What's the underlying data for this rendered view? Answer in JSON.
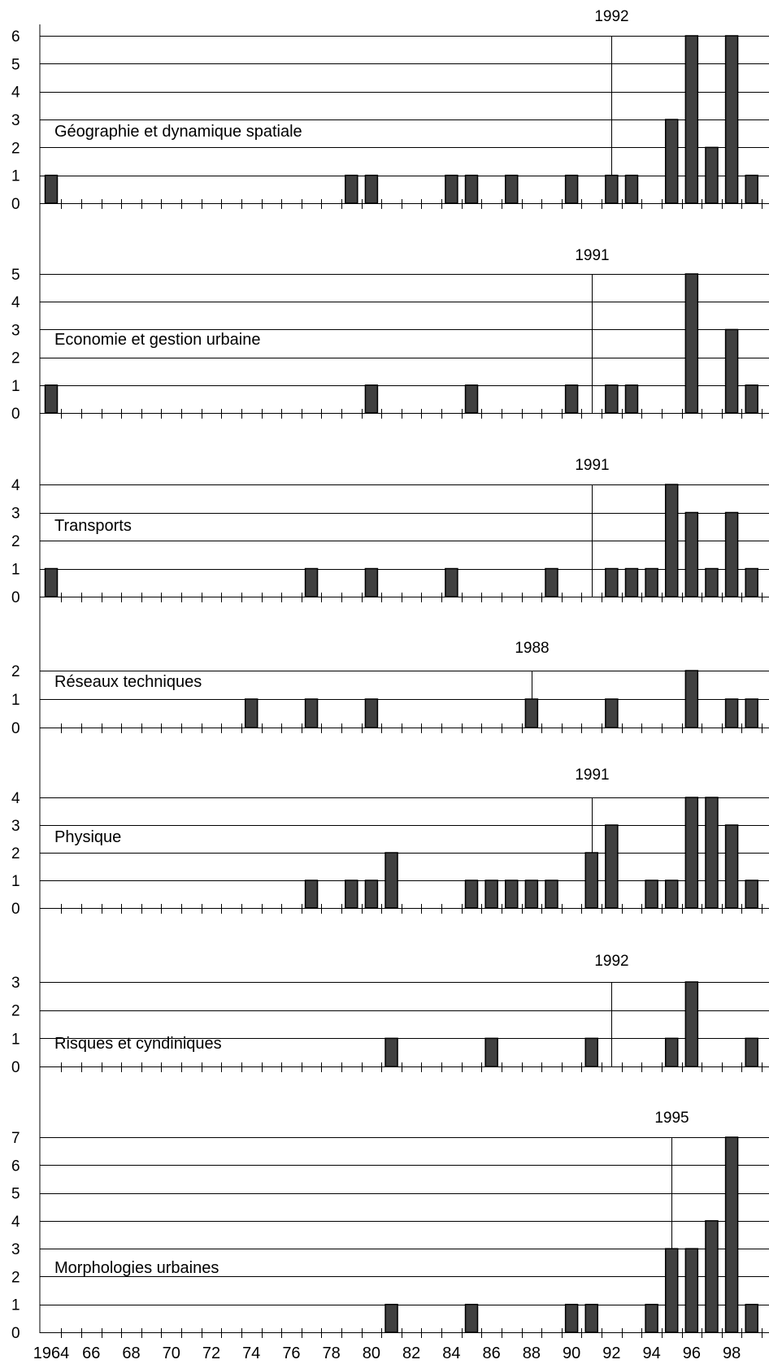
{
  "chart_data": {
    "type": "bar",
    "x_tick_labels": [
      "1964",
      "66",
      "68",
      "70",
      "72",
      "74",
      "76",
      "78",
      "80",
      "82",
      "84",
      "86",
      "88",
      "90",
      "92",
      "94",
      "96",
      "98"
    ],
    "x_range": [
      1964,
      1999
    ],
    "grid": true,
    "panels": [
      {
        "title": "Géographie et dynamique spatiale",
        "ylim": [
          0,
          6
        ],
        "y_ticks": [
          "0",
          "1",
          "2",
          "3",
          "4",
          "5",
          "6"
        ],
        "marker_year": 1992,
        "marker_label": "1992",
        "bars": [
          {
            "year": 1964,
            "value": 1
          },
          {
            "year": 1979,
            "value": 1
          },
          {
            "year": 1980,
            "value": 1
          },
          {
            "year": 1984,
            "value": 1
          },
          {
            "year": 1985,
            "value": 1
          },
          {
            "year": 1987,
            "value": 1
          },
          {
            "year": 1990,
            "value": 1
          },
          {
            "year": 1992,
            "value": 1
          },
          {
            "year": 1993,
            "value": 1
          },
          {
            "year": 1995,
            "value": 3
          },
          {
            "year": 1996,
            "value": 6
          },
          {
            "year": 1997,
            "value": 2
          },
          {
            "year": 1998,
            "value": 6
          },
          {
            "year": 1999,
            "value": 1
          }
        ]
      },
      {
        "title": "Economie et gestion urbaine",
        "ylim": [
          0,
          5
        ],
        "y_ticks": [
          "0",
          "1",
          "2",
          "3",
          "4",
          "5"
        ],
        "marker_year": 1991,
        "marker_label": "1991",
        "bars": [
          {
            "year": 1964,
            "value": 1
          },
          {
            "year": 1980,
            "value": 1
          },
          {
            "year": 1985,
            "value": 1
          },
          {
            "year": 1990,
            "value": 1
          },
          {
            "year": 1992,
            "value": 1
          },
          {
            "year": 1993,
            "value": 1
          },
          {
            "year": 1996,
            "value": 5
          },
          {
            "year": 1998,
            "value": 3
          },
          {
            "year": 1999,
            "value": 1
          }
        ]
      },
      {
        "title": "Transports",
        "ylim": [
          0,
          4
        ],
        "y_ticks": [
          "0",
          "1",
          "2",
          "3",
          "4"
        ],
        "marker_year": 1991,
        "marker_label": "1991",
        "bars": [
          {
            "year": 1964,
            "value": 1
          },
          {
            "year": 1977,
            "value": 1
          },
          {
            "year": 1980,
            "value": 1
          },
          {
            "year": 1984,
            "value": 1
          },
          {
            "year": 1989,
            "value": 1
          },
          {
            "year": 1992,
            "value": 1
          },
          {
            "year": 1993,
            "value": 1
          },
          {
            "year": 1994,
            "value": 1
          },
          {
            "year": 1995,
            "value": 4
          },
          {
            "year": 1996,
            "value": 3
          },
          {
            "year": 1997,
            "value": 1
          },
          {
            "year": 1998,
            "value": 3
          },
          {
            "year": 1999,
            "value": 1
          }
        ]
      },
      {
        "title": "Réseaux techniques",
        "ylim": [
          0,
          2
        ],
        "y_ticks": [
          "0",
          "1",
          "2"
        ],
        "marker_year": 1988,
        "marker_label": "1988",
        "bars": [
          {
            "year": 1974,
            "value": 1
          },
          {
            "year": 1977,
            "value": 1
          },
          {
            "year": 1980,
            "value": 1
          },
          {
            "year": 1988,
            "value": 1
          },
          {
            "year": 1992,
            "value": 1
          },
          {
            "year": 1996,
            "value": 2
          },
          {
            "year": 1998,
            "value": 1
          },
          {
            "year": 1999,
            "value": 1
          }
        ]
      },
      {
        "title": "Physique",
        "ylim": [
          0,
          4
        ],
        "y_ticks": [
          "0",
          "1",
          "2",
          "3",
          "4"
        ],
        "marker_year": 1991,
        "marker_label": "1991",
        "bars": [
          {
            "year": 1977,
            "value": 1
          },
          {
            "year": 1979,
            "value": 1
          },
          {
            "year": 1980,
            "value": 1
          },
          {
            "year": 1981,
            "value": 2
          },
          {
            "year": 1985,
            "value": 1
          },
          {
            "year": 1986,
            "value": 1
          },
          {
            "year": 1987,
            "value": 1
          },
          {
            "year": 1988,
            "value": 1
          },
          {
            "year": 1989,
            "value": 1
          },
          {
            "year": 1991,
            "value": 2
          },
          {
            "year": 1992,
            "value": 3
          },
          {
            "year": 1994,
            "value": 1
          },
          {
            "year": 1995,
            "value": 1
          },
          {
            "year": 1996,
            "value": 4
          },
          {
            "year": 1997,
            "value": 4
          },
          {
            "year": 1998,
            "value": 3
          },
          {
            "year": 1999,
            "value": 1
          }
        ]
      },
      {
        "title": "Risques et cyndiniques",
        "ylim": [
          0,
          3
        ],
        "y_ticks": [
          "0",
          "1",
          "2",
          "3"
        ],
        "marker_year": 1992,
        "marker_label": "1992",
        "bars": [
          {
            "year": 1981,
            "value": 1
          },
          {
            "year": 1986,
            "value": 1
          },
          {
            "year": 1991,
            "value": 1
          },
          {
            "year": 1995,
            "value": 1
          },
          {
            "year": 1996,
            "value": 3
          },
          {
            "year": 1999,
            "value": 1
          }
        ]
      },
      {
        "title": "Morphologies urbaines",
        "ylim": [
          0,
          7
        ],
        "y_ticks": [
          "0",
          "1",
          "2",
          "3",
          "4",
          "5",
          "6",
          "7"
        ],
        "marker_year": 1995,
        "marker_label": "1995",
        "bars": [
          {
            "year": 1981,
            "value": 1
          },
          {
            "year": 1985,
            "value": 1
          },
          {
            "year": 1990,
            "value": 1
          },
          {
            "year": 1991,
            "value": 1
          },
          {
            "year": 1994,
            "value": 1
          },
          {
            "year": 1995,
            "value": 3
          },
          {
            "year": 1996,
            "value": 3
          },
          {
            "year": 1997,
            "value": 4
          },
          {
            "year": 1998,
            "value": 7
          },
          {
            "year": 1999,
            "value": 1
          }
        ]
      }
    ]
  }
}
